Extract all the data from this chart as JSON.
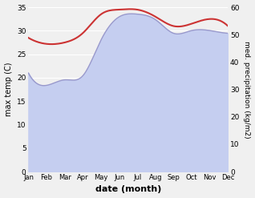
{
  "months": [
    "Jan",
    "Feb",
    "Mar",
    "Apr",
    "May",
    "Jun",
    "Jul",
    "Aug",
    "Sep",
    "Oct",
    "Nov",
    "Dec"
  ],
  "x": [
    0,
    1,
    2,
    3,
    4,
    5,
    6,
    7,
    8,
    9,
    10,
    11
  ],
  "temp": [
    28.5,
    27.2,
    27.5,
    29.5,
    33.5,
    34.5,
    34.5,
    33.0,
    31.0,
    31.5,
    32.5,
    31.0
  ],
  "precip_kg": [
    36.0,
    31.5,
    33.5,
    35.0,
    48.0,
    56.5,
    57.5,
    55.5,
    50.5,
    51.5,
    51.5,
    50.5
  ],
  "temp_color": "#cc3333",
  "precip_line_color": "#9999cc",
  "precip_fill_color": "#c5cef0",
  "temp_ylim": [
    0,
    35
  ],
  "precip_ylim": [
    0,
    60
  ],
  "temp_yticks": [
    0,
    5,
    10,
    15,
    20,
    25,
    30,
    35
  ],
  "precip_yticks": [
    0,
    10,
    20,
    30,
    40,
    50,
    60
  ],
  "xlabel": "date (month)",
  "ylabel_left": "max temp (C)",
  "ylabel_right": "med. precipitation (kg/m2)",
  "bg_color": "#f0f0f0",
  "grid_color": "#ffffff"
}
